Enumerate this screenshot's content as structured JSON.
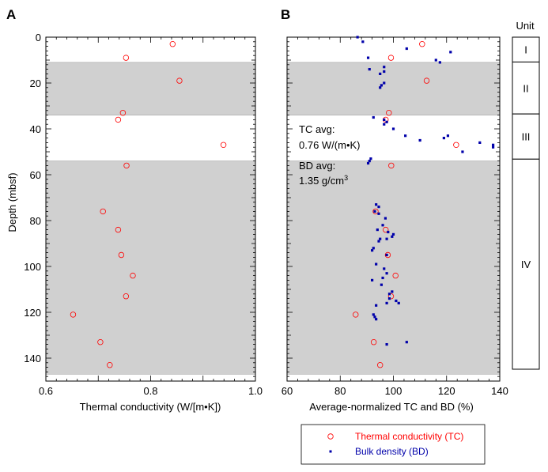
{
  "panel_a": {
    "label": "A"
  },
  "panel_b": {
    "label": "B"
  },
  "colors": {
    "tc": "#ff0000",
    "bd": "#0000aa",
    "shade": "#d0d0d0",
    "axis": "#000000"
  },
  "legend": {
    "tc_label": "Thermal conductivity (TC)",
    "bd_label": "Bulk density (BD)"
  },
  "annotations": {
    "tc_line1": "TC avg:",
    "tc_line2": "0.76 W/(m•K)",
    "bd_line1": "BD avg:",
    "bd_line2": "1.35 g/cm",
    "bd_sup": "3"
  },
  "units_column": {
    "header": "Unit",
    "units": [
      {
        "label": "I",
        "top": 0,
        "bottom": 11
      },
      {
        "label": "II",
        "top": 11,
        "bottom": 34
      },
      {
        "label": "III",
        "top": 34,
        "bottom": 54
      },
      {
        "label": "IV",
        "top": 54,
        "bottom": 147
      }
    ]
  },
  "chart_data": [
    {
      "type": "scatter",
      "panel": "A",
      "xlabel": "Thermal conductivity (W/[m•K])",
      "ylabel": "Depth (mbsf)",
      "xlim": [
        0.6,
        1.0
      ],
      "ylim": [
        150,
        0
      ],
      "xticks": [
        "0.6",
        "0.8",
        "1.0"
      ],
      "yticks": [
        "0",
        "20",
        "40",
        "60",
        "80",
        "100",
        "120",
        "140"
      ],
      "shaded_depth_intervals": [
        [
          11,
          34
        ],
        [
          54,
          147
        ]
      ],
      "series": [
        {
          "name": "Thermal conductivity (TC)",
          "marker": "open-circle",
          "points": [
            [
              0.842,
              3
            ],
            [
              0.753,
              9
            ],
            [
              0.855,
              19
            ],
            [
              0.747,
              33
            ],
            [
              0.738,
              36
            ],
            [
              0.939,
              47
            ],
            [
              0.754,
              56
            ],
            [
              0.709,
              76
            ],
            [
              0.738,
              84
            ],
            [
              0.744,
              95
            ],
            [
              0.766,
              104
            ],
            [
              0.753,
              113
            ],
            [
              0.652,
              121
            ],
            [
              0.704,
              133
            ],
            [
              0.722,
              143
            ]
          ]
        }
      ]
    },
    {
      "type": "scatter",
      "panel": "B",
      "xlabel": "Average-normalized TC and BD (%)",
      "ylabel": "",
      "xlim": [
        60,
        140
      ],
      "ylim": [
        150,
        0
      ],
      "xticks": [
        "60",
        "80",
        "100",
        "120",
        "140"
      ],
      "yticks": [],
      "shaded_depth_intervals": [
        [
          11,
          34
        ],
        [
          54,
          147
        ]
      ],
      "series": [
        {
          "name": "Thermal conductivity (TC)",
          "marker": "open-circle",
          "points": [
            [
              110.8,
              3
            ],
            [
              99.1,
              9
            ],
            [
              112.5,
              19
            ],
            [
              98.3,
              33
            ],
            [
              97.1,
              36
            ],
            [
              123.6,
              47
            ],
            [
              99.2,
              56
            ],
            [
              93.3,
              76
            ],
            [
              97.1,
              84
            ],
            [
              97.9,
              95
            ],
            [
              100.8,
              104
            ],
            [
              99.1,
              113
            ],
            [
              85.8,
              121
            ],
            [
              92.6,
              133
            ],
            [
              95.0,
              143
            ]
          ]
        },
        {
          "name": "Bulk density (BD)",
          "marker": "filled-square",
          "points": [
            [
              86.5,
              0
            ],
            [
              88.5,
              2
            ],
            [
              105,
              5
            ],
            [
              121.5,
              6.5
            ],
            [
              116,
              10
            ],
            [
              117.5,
              11
            ],
            [
              90.5,
              9
            ],
            [
              96.5,
              13
            ],
            [
              91,
              14
            ],
            [
              96.5,
              15
            ],
            [
              95,
              16
            ],
            [
              96.5,
              20
            ],
            [
              95.5,
              21
            ],
            [
              95,
              22
            ],
            [
              92.5,
              35
            ],
            [
              96.5,
              36
            ],
            [
              97.5,
              37
            ],
            [
              96.5,
              38
            ],
            [
              100,
              40
            ],
            [
              104.5,
              43
            ],
            [
              110,
              45
            ],
            [
              120.5,
              43
            ],
            [
              119,
              44
            ],
            [
              132.5,
              46
            ],
            [
              137.5,
              47
            ],
            [
              137.5,
              48
            ],
            [
              126,
              50
            ],
            [
              91.5,
              53
            ],
            [
              91,
              54
            ],
            [
              90.5,
              55
            ],
            [
              93.5,
              73
            ],
            [
              94.5,
              74
            ],
            [
              93,
              76
            ],
            [
              94.5,
              77
            ],
            [
              97,
              79
            ],
            [
              96,
              82
            ],
            [
              94,
              84
            ],
            [
              98,
              85
            ],
            [
              100,
              86
            ],
            [
              99.5,
              87
            ],
            [
              95,
              88
            ],
            [
              97.5,
              88
            ],
            [
              94.5,
              89
            ],
            [
              92.5,
              92
            ],
            [
              92,
              93
            ],
            [
              97.5,
              95
            ],
            [
              93.5,
              99
            ],
            [
              96.5,
              101
            ],
            [
              97.5,
              103
            ],
            [
              96,
              105
            ],
            [
              92,
              106
            ],
            [
              95.5,
              108
            ],
            [
              99.5,
              111
            ],
            [
              98.5,
              112
            ],
            [
              98.5,
              114
            ],
            [
              101,
              115
            ],
            [
              102,
              116
            ],
            [
              97.5,
              116
            ],
            [
              93.5,
              117
            ],
            [
              92.5,
              121
            ],
            [
              93,
              122
            ],
            [
              93.5,
              123
            ],
            [
              97.5,
              134
            ],
            [
              105,
              133
            ]
          ]
        }
      ]
    }
  ]
}
